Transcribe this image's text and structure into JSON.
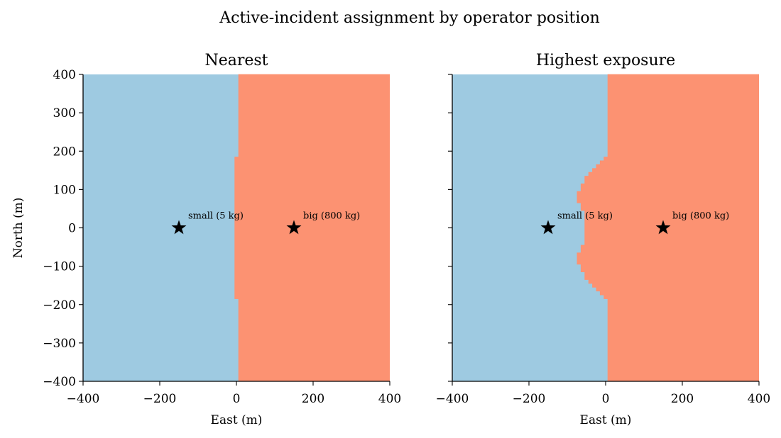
{
  "figure_title": "Active-incident assignment by operator position",
  "colors": {
    "small_region": "#9ecae1",
    "big_region": "#fc9272",
    "marker": "#000000",
    "axis": "#000000"
  },
  "chart_data": [
    {
      "type": "heatmap",
      "title": "Nearest",
      "xlabel": "East (m)",
      "ylabel": "North (m)",
      "xlim": [
        -400,
        400
      ],
      "ylim": [
        -400,
        400
      ],
      "xticks": [
        -400,
        -200,
        0,
        200,
        400
      ],
      "yticks": [
        -400,
        -300,
        -200,
        -100,
        0,
        100,
        200,
        300,
        400
      ],
      "xtick_labels": [
        "−400",
        "−200",
        "0",
        "200",
        "400"
      ],
      "ytick_labels": [
        "−400",
        "−300",
        "−200",
        "−100",
        "0",
        "100",
        "200",
        "300",
        "400"
      ],
      "show_yticklabels": true,
      "regions": [
        {
          "name": "small",
          "color": "#9ecae1"
        },
        {
          "name": "big",
          "color": "#fc9272"
        }
      ],
      "boundary": [
        {
          "y0": -400,
          "y1": -185,
          "x": 5
        },
        {
          "y0": -185,
          "y1": 185,
          "x": -5
        },
        {
          "y0": 185,
          "y1": 400,
          "x": 5
        }
      ],
      "incidents": [
        {
          "label": "small (5 kg)",
          "x": -150,
          "y": 0
        },
        {
          "label": "big (800 kg)",
          "x": 150,
          "y": 0
        }
      ],
      "grid": false,
      "legend": "none"
    },
    {
      "type": "heatmap",
      "title": "Highest exposure",
      "xlabel": "East (m)",
      "ylabel": "",
      "xlim": [
        -400,
        400
      ],
      "ylim": [
        -400,
        400
      ],
      "xticks": [
        -400,
        -200,
        0,
        200,
        400
      ],
      "yticks": [
        -400,
        -300,
        -200,
        -100,
        0,
        100,
        200,
        300,
        400
      ],
      "xtick_labels": [
        "−400",
        "−200",
        "0",
        "200",
        "400"
      ],
      "ytick_labels": [],
      "show_yticklabels": false,
      "regions": [
        {
          "name": "small",
          "color": "#9ecae1"
        },
        {
          "name": "big",
          "color": "#fc9272"
        }
      ],
      "boundary": [
        {
          "y0": -400,
          "y1": -185,
          "x": 5
        },
        {
          "y0": -185,
          "y1": -175,
          "x": -5
        },
        {
          "y0": -175,
          "y1": -165,
          "x": -15
        },
        {
          "y0": -165,
          "y1": -155,
          "x": -25
        },
        {
          "y0": -155,
          "y1": -145,
          "x": -35
        },
        {
          "y0": -145,
          "y1": -135,
          "x": -45
        },
        {
          "y0": -135,
          "y1": -115,
          "x": -55
        },
        {
          "y0": -115,
          "y1": -95,
          "x": -65
        },
        {
          "y0": -95,
          "y1": -65,
          "x": -75
        },
        {
          "y0": -65,
          "y1": -45,
          "x": -65
        },
        {
          "y0": -45,
          "y1": 45,
          "x": -55
        },
        {
          "y0": 45,
          "y1": 65,
          "x": -65
        },
        {
          "y0": 65,
          "y1": 95,
          "x": -75
        },
        {
          "y0": 95,
          "y1": 115,
          "x": -65
        },
        {
          "y0": 115,
          "y1": 135,
          "x": -55
        },
        {
          "y0": 135,
          "y1": 145,
          "x": -45
        },
        {
          "y0": 145,
          "y1": 155,
          "x": -35
        },
        {
          "y0": 155,
          "y1": 165,
          "x": -25
        },
        {
          "y0": 165,
          "y1": 175,
          "x": -15
        },
        {
          "y0": 175,
          "y1": 185,
          "x": -5
        },
        {
          "y0": 185,
          "y1": 400,
          "x": 5
        }
      ],
      "incidents": [
        {
          "label": "small (5 kg)",
          "x": -150,
          "y": 0
        },
        {
          "label": "big (800 kg)",
          "x": 150,
          "y": 0
        }
      ],
      "grid": false,
      "legend": "none"
    }
  ]
}
